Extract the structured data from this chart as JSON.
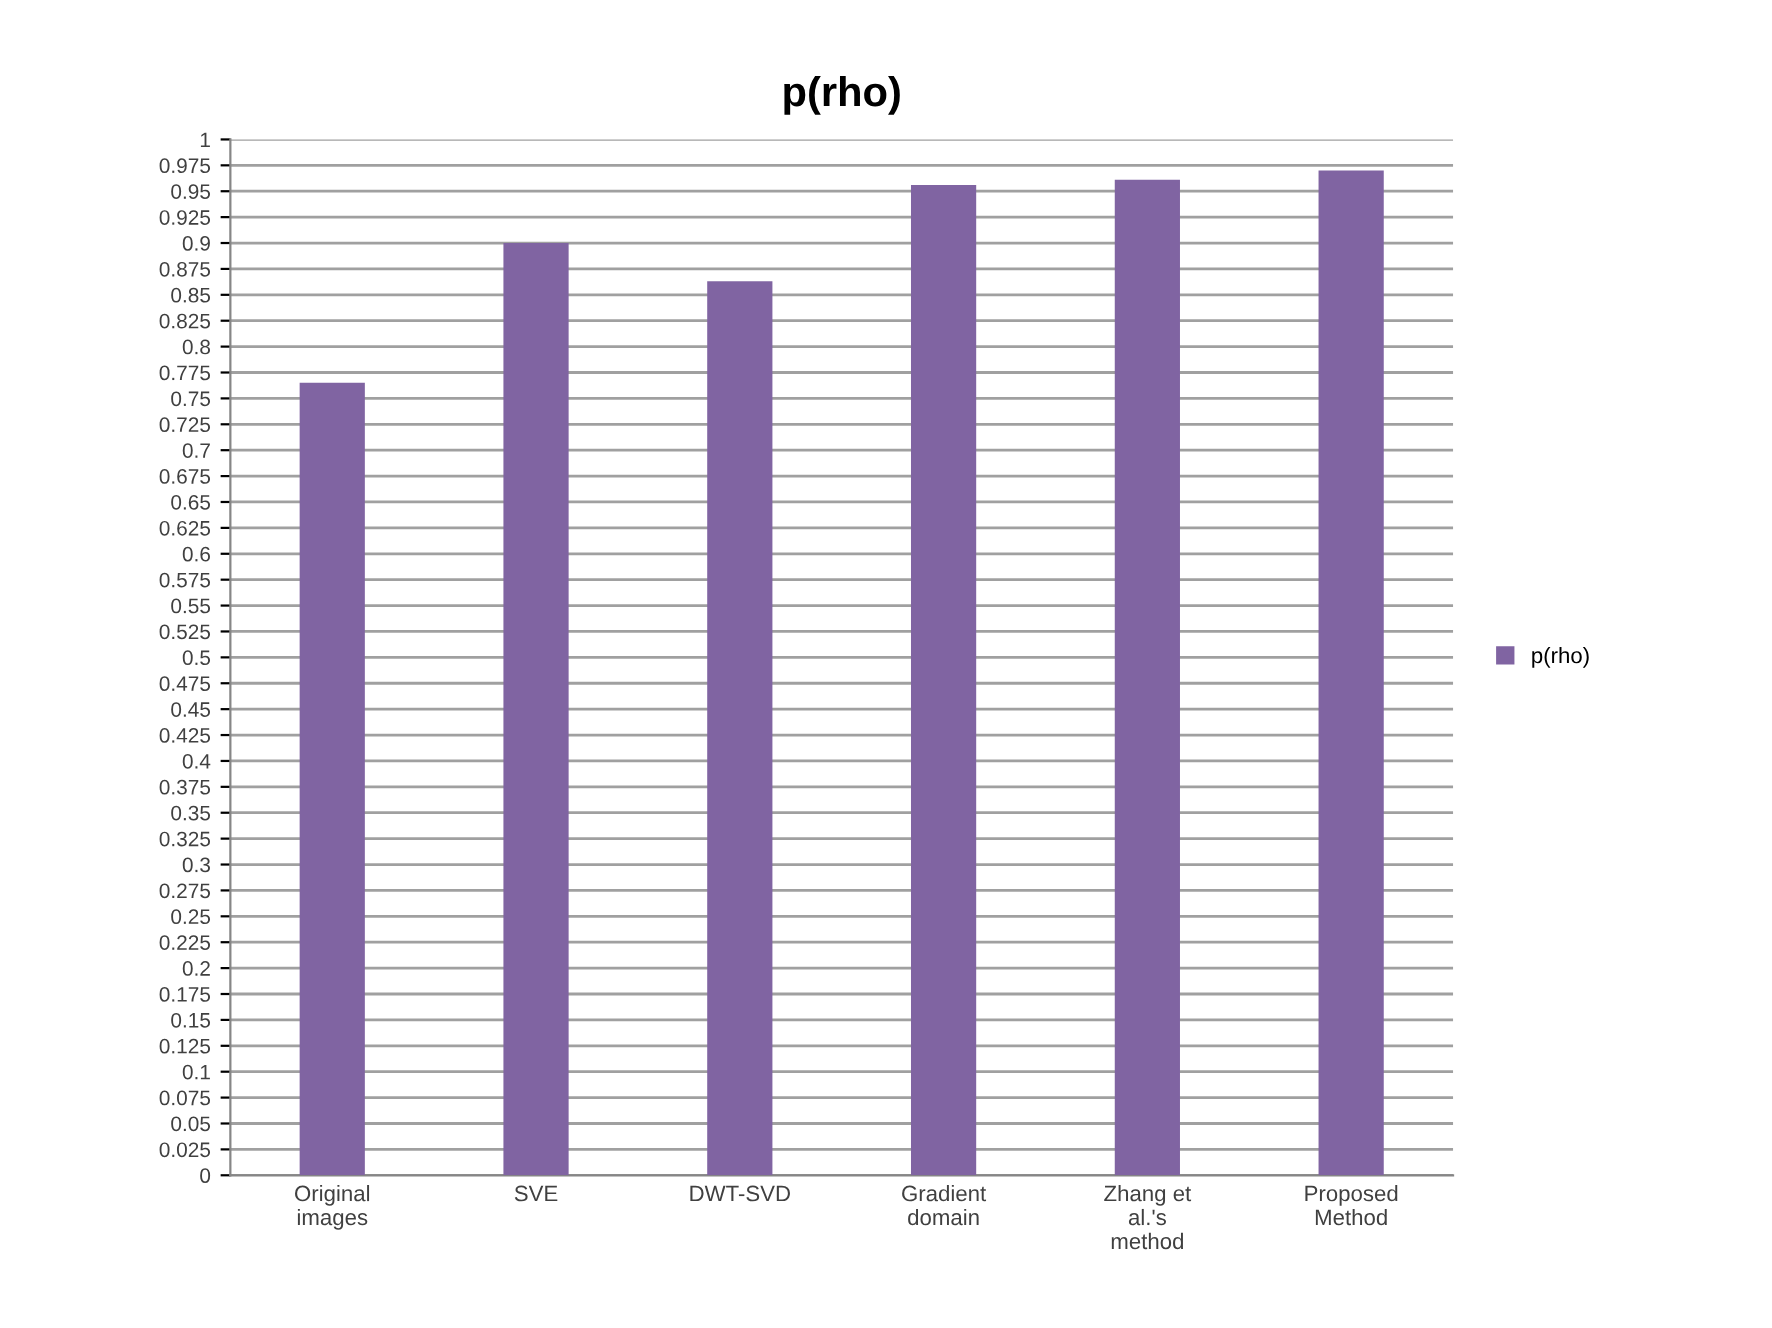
{
  "chart_data": {
    "type": "bar",
    "title": "p(rho)",
    "categories": [
      "Original\nimages",
      "SVE",
      "DWT-SVD",
      "Gradient\ndomain",
      "Zhang et\nal.'s\nmethod",
      "Proposed\nMethod"
    ],
    "series": [
      {
        "name": "p(rho)",
        "color": "#8064a2",
        "values": [
          0.765,
          0.9,
          0.863,
          0.956,
          0.961,
          0.97
        ]
      }
    ],
    "ylim": [
      0,
      1
    ],
    "yticks": [
      0,
      0.025,
      0.05,
      0.075,
      0.1,
      0.125,
      0.15,
      0.175,
      0.2,
      0.225,
      0.25,
      0.275,
      0.3,
      0.325,
      0.35,
      0.375,
      0.4,
      0.425,
      0.45,
      0.475,
      0.5,
      0.525,
      0.55,
      0.575,
      0.6,
      0.625,
      0.65,
      0.675,
      0.7,
      0.725,
      0.75,
      0.775,
      0.8,
      0.825,
      0.85,
      0.875,
      0.9,
      0.925,
      0.95,
      0.975,
      1
    ],
    "grid": "y",
    "legend": "right"
  }
}
